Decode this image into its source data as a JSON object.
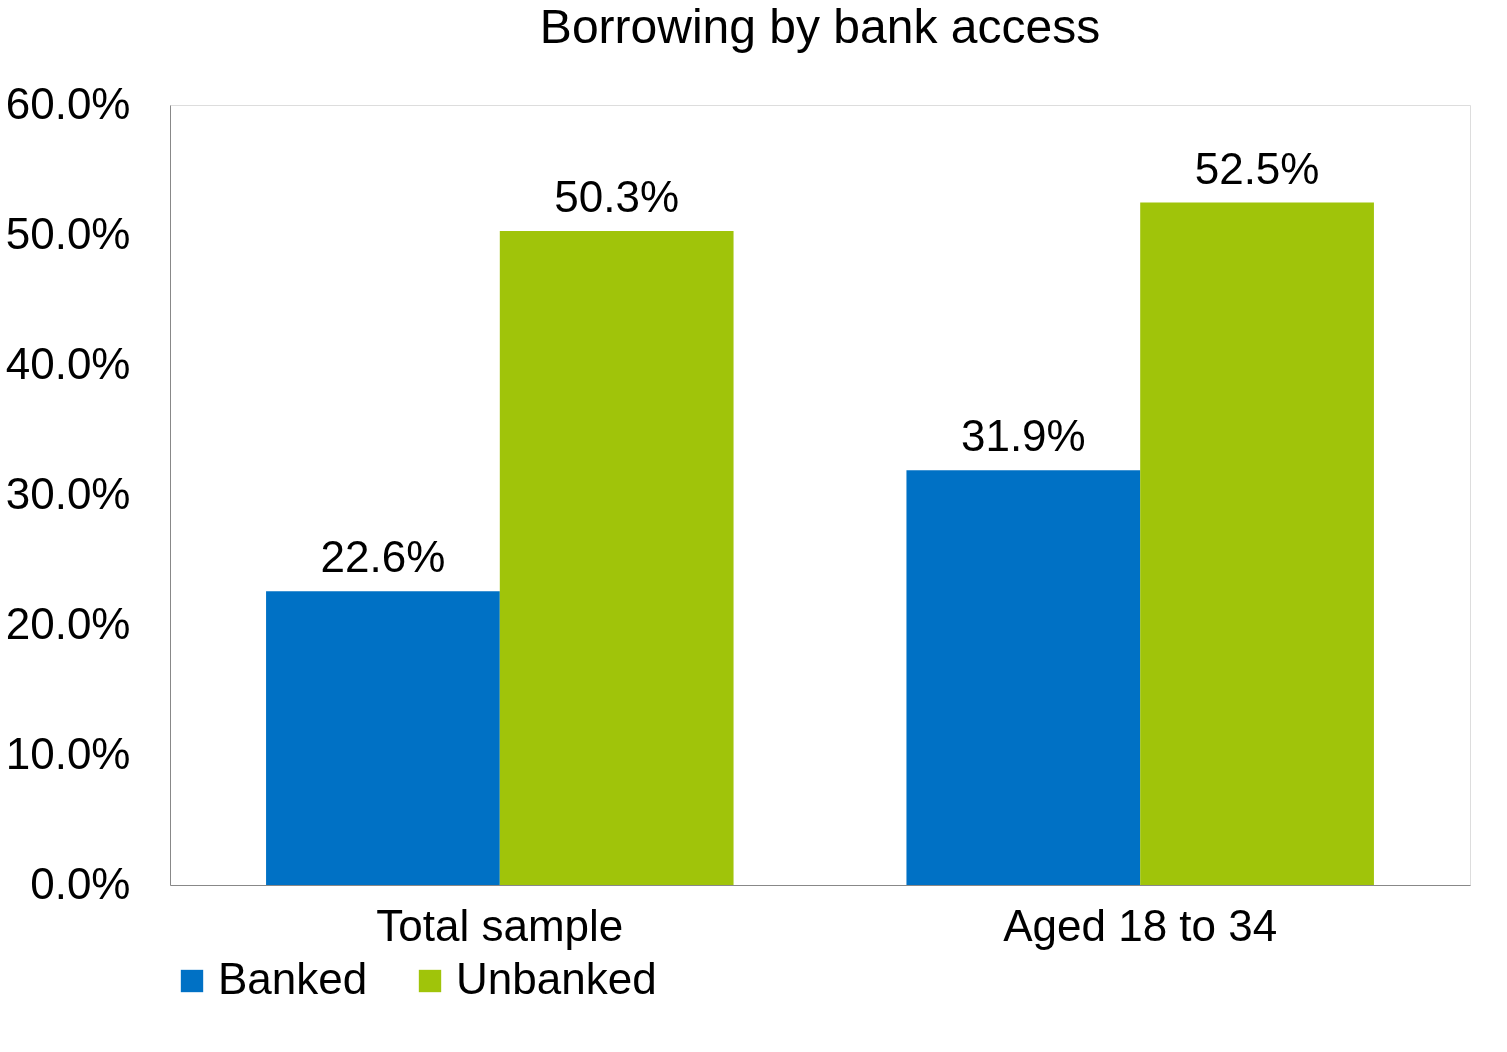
{
  "chart_data": {
    "type": "bar",
    "title": "Borrowing by bank access",
    "categories": [
      "Total sample",
      "Aged 18 to 34"
    ],
    "series": [
      {
        "name": "Banked",
        "color": "#0071c5",
        "values": [
          22.6,
          31.9
        ],
        "value_labels": [
          "22.6%",
          "31.9%"
        ]
      },
      {
        "name": "Unbanked",
        "color": "#a0c40a",
        "values": [
          50.3,
          52.5
        ],
        "value_labels": [
          "50.3%",
          "52.5%"
        ]
      }
    ],
    "ylim": [
      0,
      60
    ],
    "yticks": [
      {
        "value": 0,
        "label": "0.0%"
      },
      {
        "value": 10,
        "label": "10.0%"
      },
      {
        "value": 20,
        "label": "20.0%"
      },
      {
        "value": 30,
        "label": "30.0%"
      },
      {
        "value": 40,
        "label": "40.0%"
      },
      {
        "value": 50,
        "label": "50.0%"
      },
      {
        "value": 60,
        "label": "60.0%"
      }
    ],
    "grid": false,
    "legend": "bottom"
  }
}
